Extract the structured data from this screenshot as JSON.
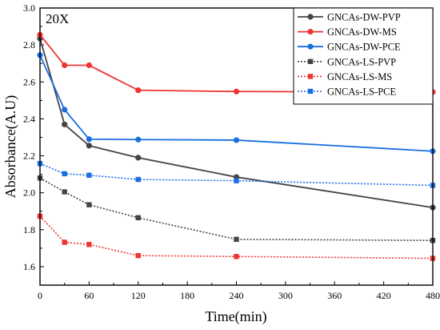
{
  "chart_data": {
    "type": "line",
    "annotation": "20X",
    "xlabel": "Time(min)",
    "ylabel": "Absorbance(A.U)",
    "xlim": [
      0,
      480
    ],
    "ylim": [
      1.5,
      3.0
    ],
    "xticks": [
      0,
      60,
      120,
      180,
      240,
      300,
      360,
      420,
      480
    ],
    "yticks": [
      1.6,
      1.8,
      2.0,
      2.2,
      2.4,
      2.6,
      2.8,
      3.0
    ],
    "ytick_labels": [
      "1.6",
      "1.8",
      "2.0",
      "2.2",
      "2.4",
      "2.6",
      "2.8",
      "3.0"
    ],
    "grid": false,
    "legend_position": "top-right",
    "x": [
      0,
      30,
      60,
      120,
      240,
      480
    ],
    "series": [
      {
        "name": "GNCAs-DW-PVP",
        "color": "#444444",
        "line": "solid",
        "marker": "circle",
        "values": [
          2.835,
          2.37,
          2.255,
          2.19,
          2.085,
          1.92
        ]
      },
      {
        "name": "GNCAs-DW-MS",
        "color": "#ee3333",
        "line": "solid",
        "marker": "circle",
        "values": [
          2.855,
          2.69,
          2.69,
          2.555,
          2.548,
          2.545
        ]
      },
      {
        "name": "GNCAs-DW-PCE",
        "color": "#1a6fe0",
        "line": "solid",
        "marker": "circle",
        "values": [
          2.745,
          2.45,
          2.29,
          2.288,
          2.285,
          2.225
        ]
      },
      {
        "name": "GNCAs-LS-PVP",
        "color": "#444444",
        "line": "dotted",
        "marker": "square",
        "values": [
          2.08,
          2.005,
          1.935,
          1.865,
          1.748,
          1.742
        ]
      },
      {
        "name": "GNCAs-LS-MS",
        "color": "#ee3333",
        "line": "dotted",
        "marker": "square",
        "values": [
          1.873,
          1.732,
          1.72,
          1.66,
          1.655,
          1.645
        ]
      },
      {
        "name": "GNCAs-LS-PCE",
        "color": "#1a6fe0",
        "line": "dotted",
        "marker": "square",
        "values": [
          2.158,
          2.103,
          2.095,
          2.072,
          2.065,
          2.04
        ]
      }
    ]
  }
}
